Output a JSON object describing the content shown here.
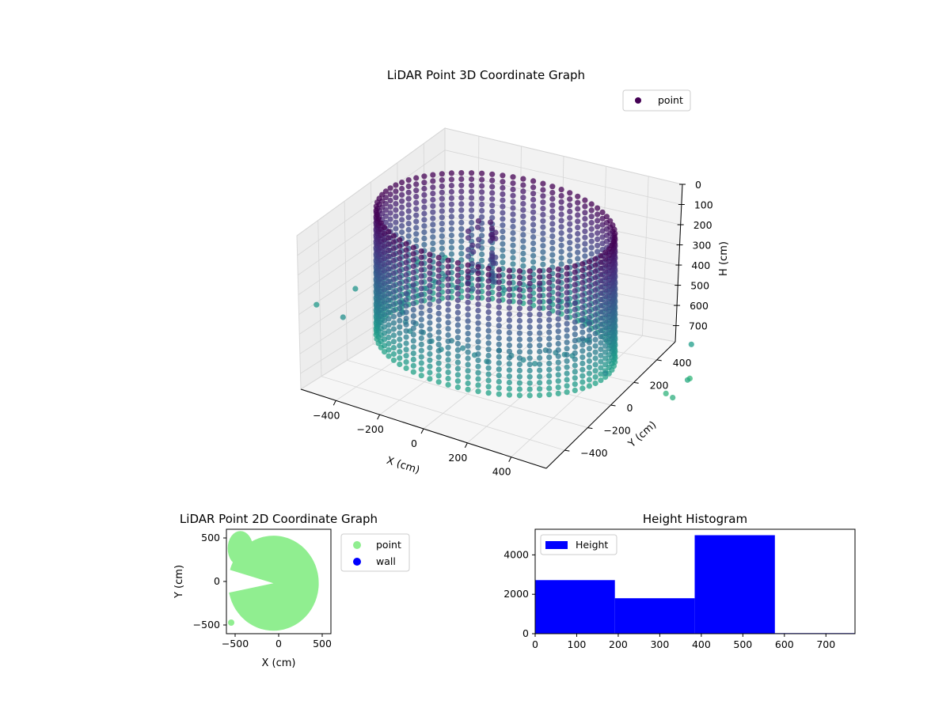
{
  "colors": {
    "legend_point_3d": "#440154",
    "point_2d": "#90ee90",
    "wall_2d": "#0000ff",
    "histogram": "#0000ff"
  },
  "chart_data": [
    {
      "type": "scatter",
      "projection": "3d",
      "title": "LiDAR Point 3D Coordinate Graph",
      "xlabel": "X (cm)",
      "ylabel": "Y (cm)",
      "zlabel": "H (cm)",
      "x_ticks": [
        "−400",
        "−200",
        "0",
        "200",
        "400"
      ],
      "y_ticks": [
        "−400",
        "−200",
        "0",
        "200",
        "400"
      ],
      "z_ticks": [
        "0",
        "100",
        "200",
        "300",
        "400",
        "500",
        "600",
        "700"
      ],
      "xlim": [
        -560,
        560
      ],
      "ylim": [
        -560,
        560
      ],
      "zlim": [
        0,
        780
      ],
      "zaxis_inverted": true,
      "colormap": "viridis",
      "legend": [
        "point"
      ],
      "legend_position": "upper right",
      "shape": "ring of points around the sensor, radius about 480 cm, spanning heights 0-600 cm, with scattered outliers"
    },
    {
      "type": "scatter",
      "title": "LiDAR Point 2D Coordinate Graph",
      "xlabel": "X (cm)",
      "ylabel": "Y (cm)",
      "x_ticks": [
        "−500",
        "0",
        "500"
      ],
      "y_ticks": [
        "500",
        "0",
        "−500"
      ],
      "xlim": [
        -600,
        600
      ],
      "ylim": [
        -600,
        600
      ],
      "legend": [
        "point",
        "wall"
      ],
      "legend_position": "outside right",
      "shape": "filled disk of points, radius about 520 cm, with a wedge-shaped gap toward negative X near Y=0"
    },
    {
      "type": "bar",
      "title": "Height Histogram",
      "x_ticks": [
        "0",
        "100",
        "200",
        "300",
        "400",
        "500",
        "600",
        "700"
      ],
      "y_ticks": [
        "0",
        "2000",
        "4000"
      ],
      "xlim": [
        0,
        770
      ],
      "ylim": [
        0,
        5300
      ],
      "bins": [
        {
          "start": 0,
          "end": 192,
          "count": 2720
        },
        {
          "start": 192,
          "end": 384,
          "count": 1800
        },
        {
          "start": 384,
          "end": 577,
          "count": 5000
        },
        {
          "start": 577,
          "end": 770,
          "count": 30
        }
      ],
      "legend": [
        "Height"
      ],
      "legend_position": "upper left"
    }
  ]
}
